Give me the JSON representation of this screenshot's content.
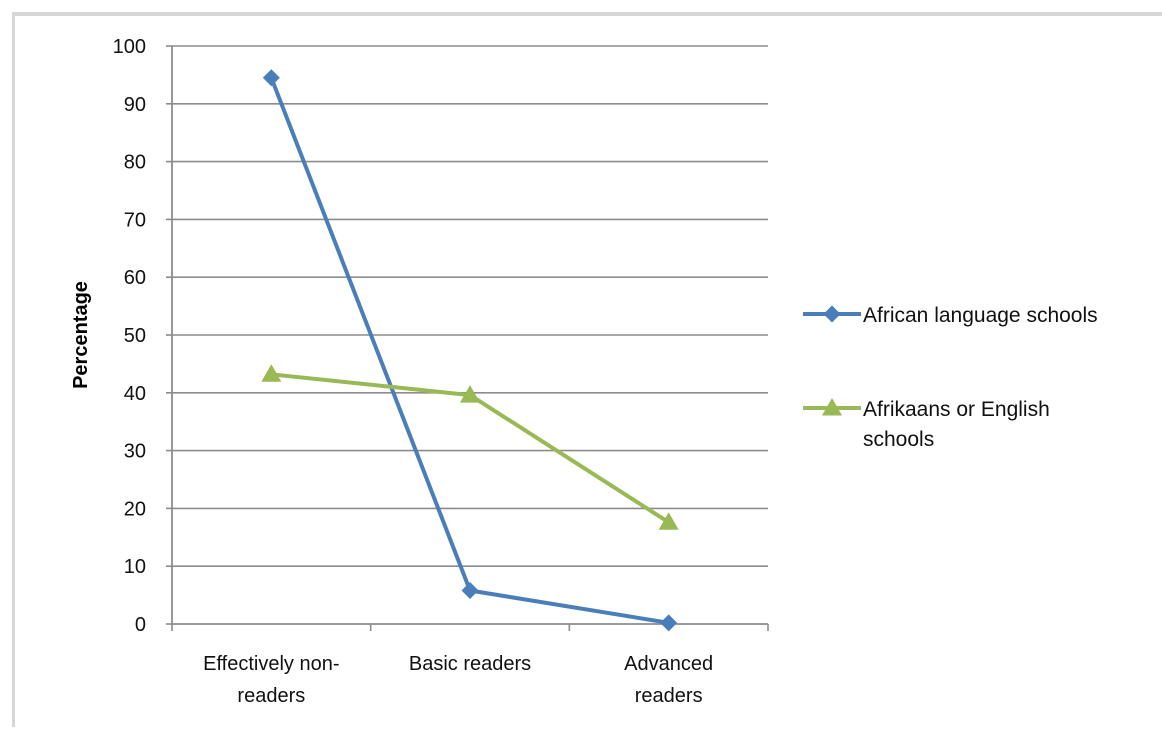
{
  "chart_data": {
    "type": "line",
    "title": "",
    "xlabel": "",
    "ylabel": "Percentage",
    "ylim": [
      0,
      100
    ],
    "yticks": [
      0,
      10,
      20,
      30,
      40,
      50,
      60,
      70,
      80,
      90,
      100
    ],
    "categories": [
      [
        "Effectively non-",
        "readers"
      ],
      [
        "Basic readers"
      ],
      [
        "Advanced",
        "readers"
      ]
    ],
    "grid": true,
    "legend_position": "right",
    "series": [
      {
        "name_lines": [
          "African language schools"
        ],
        "values": [
          94.5,
          5.8,
          0.2
        ],
        "color": "#4a7ebb",
        "marker": "diamond"
      },
      {
        "name_lines": [
          "Afrikaans or English",
          "schools"
        ],
        "values": [
          43.2,
          39.6,
          17.6
        ],
        "color": "#98b954",
        "marker": "triangle"
      }
    ]
  }
}
